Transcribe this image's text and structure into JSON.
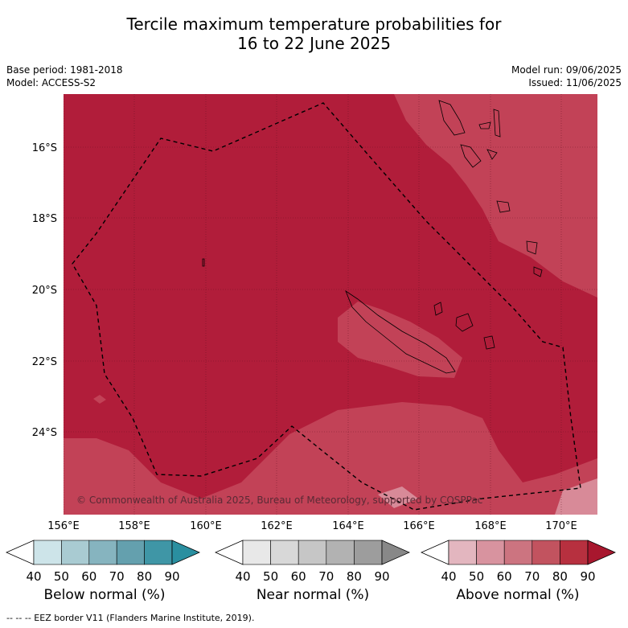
{
  "title_line1": "Tercile maximum temperature probabilities for",
  "title_line2": "16 to 22 June 2025",
  "meta_left": [
    "Base period: 1981-2018",
    "Model: ACCESS-S2"
  ],
  "meta_right": [
    "Model run: 09/06/2025",
    "Issued: 11/06/2025"
  ],
  "lat_labels": [
    "16°S",
    "18°S",
    "20°S",
    "22°S",
    "24°S"
  ],
  "lon_labels": [
    "156°E",
    "158°E",
    "160°E",
    "162°E",
    "164°E",
    "166°E",
    "168°E",
    "170°E"
  ],
  "copyright": "© Commonwealth of Australia 2025, Bureau of Meteorology, supported by COSPPac",
  "colorbars": [
    {
      "label": "Below normal (%)",
      "colors": [
        "#cde4e9",
        "#a9cbd2",
        "#86b4bf",
        "#64a0ae",
        "#3f96a6",
        "#2a8fa0"
      ]
    },
    {
      "label": "Near normal (%)",
      "colors": [
        "#e8e8e8",
        "#d8d8d8",
        "#c6c6c6",
        "#b2b2b2",
        "#9d9d9d",
        "#888888"
      ]
    },
    {
      "label": "Above normal (%)",
      "colors": [
        "#e3b6bf",
        "#d8939f",
        "#cc7480",
        "#c2535f",
        "#b7303f",
        "#a8172e"
      ]
    }
  ],
  "colorbar_ticks": [
    "40",
    "50",
    "60",
    "70",
    "80",
    "90"
  ],
  "footer": "--  --  -- EEZ border V11 (Flanders Marine Institute, 2019).",
  "colors": {
    "base_fill": "#b11d3a",
    "light_fill": "#c24257",
    "lighter_fill": "#d88a98"
  }
}
